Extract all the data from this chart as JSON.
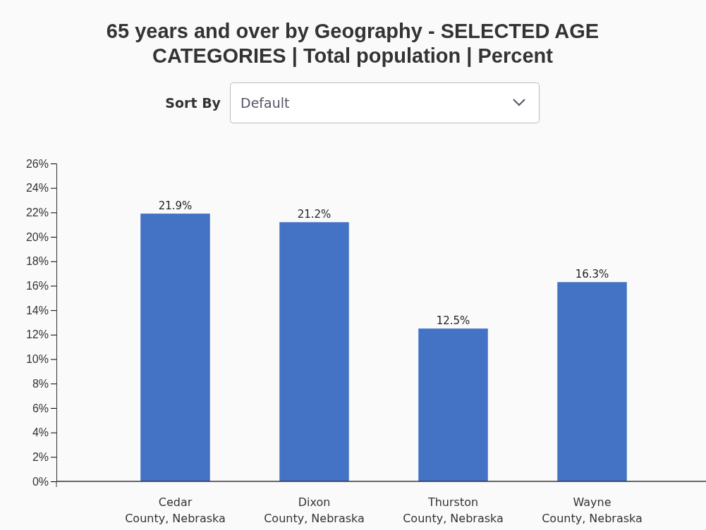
{
  "chart_data": {
    "type": "bar",
    "title": "65 years and over by Geography - SELECTED AGE CATEGORIES | Total population | Percent",
    "annotations": [
      "Sort By",
      "Default"
    ],
    "categories": [
      "Cedar County, Nebraska",
      "Dixon County, Nebraska",
      "Thurston County, Nebraska",
      "Wayne County, Nebraska"
    ],
    "values": [
      21.9,
      21.2,
      12.5,
      16.3
    ],
    "value_labels": [
      "21.9%",
      "21.2%",
      "12.5%",
      "16.3%"
    ],
    "color": "#4472c4",
    "ylim": [
      0,
      26
    ],
    "yticks": [
      {
        "value": 0,
        "label": "0%"
      },
      {
        "value": 2,
        "label": "2%"
      },
      {
        "value": 4,
        "label": "4%"
      },
      {
        "value": 6,
        "label": "6%"
      },
      {
        "value": 8,
        "label": "8%"
      },
      {
        "value": 10,
        "label": "10%"
      },
      {
        "value": 12,
        "label": "12%"
      },
      {
        "value": 14,
        "label": "14%"
      },
      {
        "value": 16,
        "label": "16%"
      },
      {
        "value": 18,
        "label": "18%"
      },
      {
        "value": 20,
        "label": "20%"
      },
      {
        "value": 22,
        "label": "22%"
      },
      {
        "value": 24,
        "label": "24%"
      },
      {
        "value": 26,
        "label": "26%"
      }
    ],
    "grid": false
  }
}
